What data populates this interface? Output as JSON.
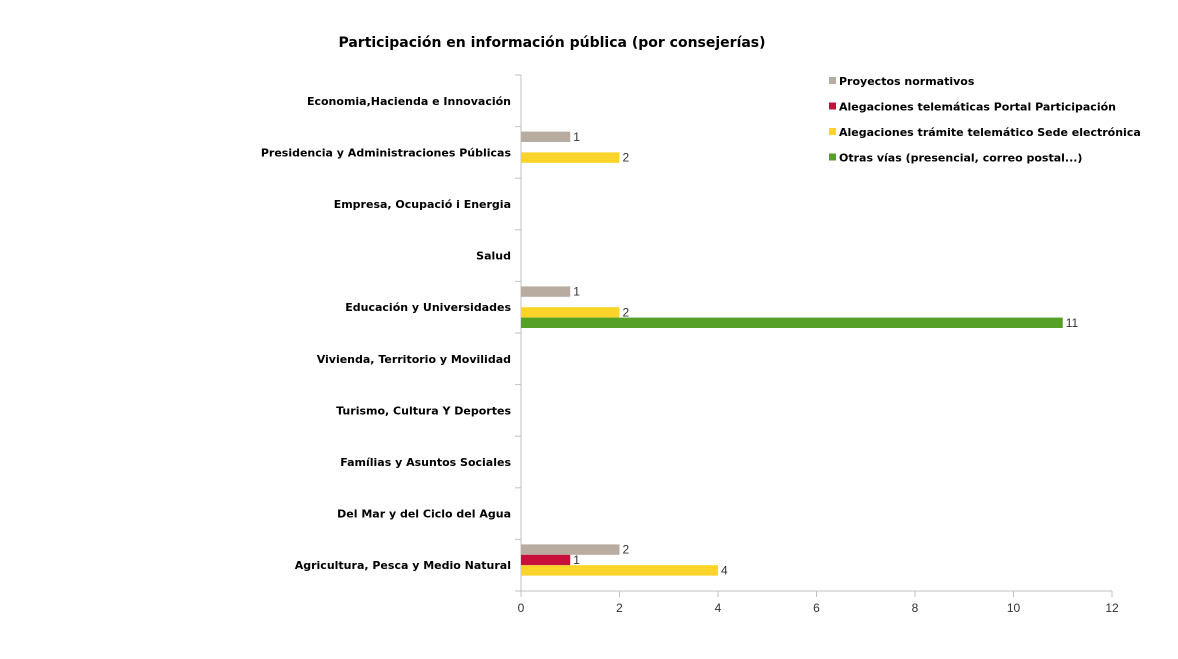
{
  "chart_data": {
    "type": "bar",
    "orientation": "horizontal",
    "title": "Participación en información pública (por consejerías)",
    "xlabel": "",
    "ylabel": "",
    "xlim": [
      0,
      12
    ],
    "x_ticks": [
      0,
      2,
      4,
      6,
      8,
      10,
      12
    ],
    "grid": false,
    "legend_position": "top-right",
    "categories": [
      "Economia,Hacienda e Innovación",
      "Presidencia y Administraciones Públicas",
      "Empresa, Ocupació i Energia",
      "Salud",
      "Educación y  Universidades",
      "Vivienda, Territorio y Movilidad",
      "Turismo, Cultura Y Deportes",
      "Famílias y Asuntos Sociales",
      "Del Mar y del Ciclo del Agua",
      "Agricultura, Pesca y Medio Natural"
    ],
    "series": [
      {
        "name": "Proyectos normativos",
        "color": "#b8aba0",
        "values": [
          null,
          1,
          null,
          null,
          1,
          null,
          null,
          null,
          null,
          2
        ]
      },
      {
        "name": "Alegaciones telemáticas Portal Participación",
        "color": "#c8103c",
        "values": [
          null,
          null,
          null,
          null,
          null,
          null,
          null,
          null,
          null,
          1
        ]
      },
      {
        "name": "Alegaciones trámite telemático Sede electrónica",
        "color": "#fcd328",
        "values": [
          null,
          2,
          null,
          null,
          2,
          null,
          null,
          null,
          null,
          4
        ]
      },
      {
        "name": "Otras vías (presencial, correo postal...)",
        "color": "#57a027",
        "values": [
          null,
          null,
          null,
          null,
          11,
          null,
          null,
          null,
          null,
          null
        ]
      }
    ]
  }
}
